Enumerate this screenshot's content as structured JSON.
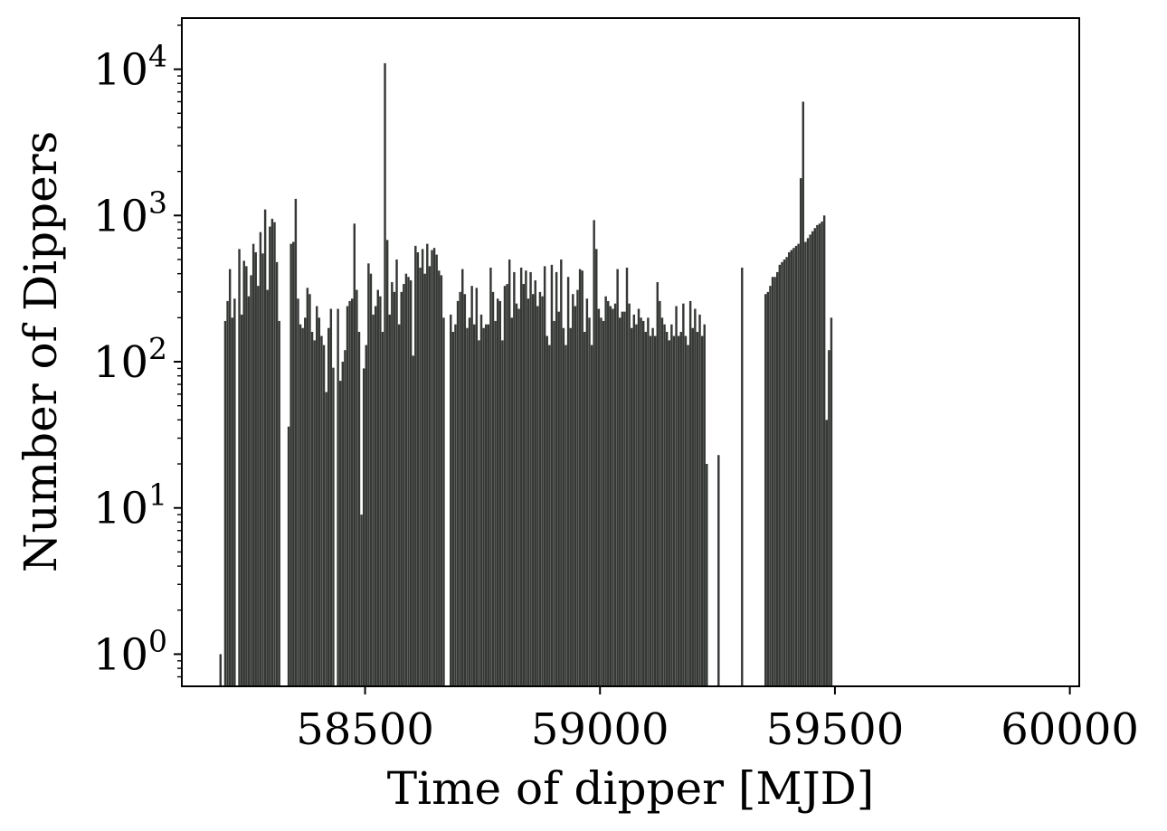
{
  "chart_data": {
    "type": "bar",
    "xlabel": "Time of dipper [MJD]",
    "ylabel": "Number of Dippers",
    "xlim": [
      58110,
      60020
    ],
    "ylim_log10": [
      -0.22,
      4.35
    ],
    "y_scale": "log",
    "x_ticks": [
      58500,
      59000,
      59500,
      60000
    ],
    "y_tick_base": "10",
    "y_tick_exponents": [
      "0",
      "1",
      "2",
      "3",
      "4"
    ],
    "grid": false,
    "legend": "none",
    "bar_color": "#353835",
    "bin_width": 5,
    "x_start": 58190,
    "counts": [
      1,
      0,
      190,
      260,
      430,
      200,
      270,
      0,
      590,
      210,
      490,
      450,
      280,
      390,
      640,
      560,
      330,
      770,
      550,
      1100,
      310,
      840,
      950,
      900,
      480,
      190,
      0,
      0,
      0,
      36,
      640,
      660,
      1300,
      270,
      180,
      170,
      200,
      320,
      290,
      160,
      140,
      240,
      200,
      150,
      130,
      62,
      170,
      230,
      91,
      0,
      230,
      74,
      100,
      120,
      240,
      260,
      270,
      880,
      310,
      160,
      9,
      90,
      130,
      470,
      400,
      210,
      240,
      310,
      280,
      160,
      11000,
      680,
      210,
      350,
      300,
      500,
      180,
      300,
      340,
      400,
      380,
      360,
      110,
      620,
      560,
      440,
      590,
      400,
      640,
      450,
      580,
      600,
      540,
      420,
      390,
      200,
      0,
      0,
      210,
      160,
      180,
      260,
      300,
      430,
      290,
      170,
      200,
      330,
      180,
      320,
      140,
      210,
      170,
      180,
      180,
      440,
      300,
      190,
      270,
      260,
      140,
      330,
      340,
      500,
      200,
      410,
      250,
      230,
      440,
      340,
      420,
      270,
      410,
      290,
      360,
      240,
      300,
      280,
      450,
      150,
      130,
      460,
      190,
      410,
      220,
      500,
      170,
      130,
      380,
      170,
      290,
      240,
      310,
      430,
      420,
      160,
      270,
      200,
      130,
      930,
      590,
      230,
      200,
      190,
      280,
      260,
      240,
      230,
      250,
      430,
      200,
      220,
      220,
      440,
      250,
      170,
      210,
      180,
      230,
      200,
      190,
      160,
      200,
      150,
      170,
      150,
      350,
      260,
      200,
      180,
      160,
      140,
      180,
      150,
      240,
      150,
      160,
      250,
      150,
      130,
      260,
      170,
      230,
      160,
      210,
      150,
      180,
      20,
      0,
      0,
      0,
      0,
      23,
      0,
      0,
      0,
      0,
      0,
      0,
      0,
      0,
      0,
      440,
      0,
      0,
      0,
      0,
      0,
      0,
      0,
      0,
      0,
      290,
      300,
      330,
      380,
      380,
      410,
      460,
      480,
      500,
      520,
      560,
      580,
      600,
      620,
      640,
      1800,
      6000,
      660,
      700,
      740,
      780,
      820,
      860,
      880,
      910,
      1000,
      40,
      120,
      200
    ],
    "series": [
      {
        "x": 58199,
        "y": 1
      },
      {
        "x": 58206,
        "y": 185
      },
      {
        "x": 58211,
        "y": 260
      },
      {
        "x": 58216,
        "y": 430
      }
    ],
    "note_values": "counts[i] is the bar height for bin starting at x_start + i*bin_width"
  }
}
